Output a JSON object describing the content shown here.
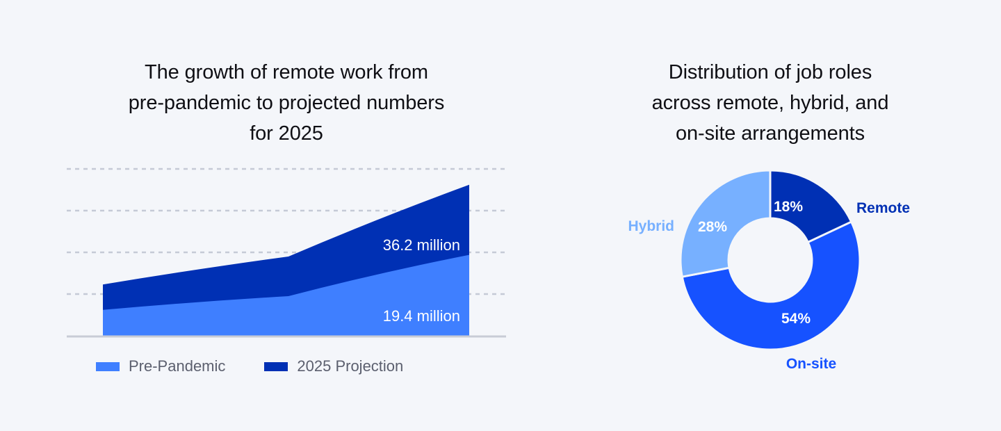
{
  "colors": {
    "background": "#f4f6fa",
    "pre_pandemic": "#3f7fff",
    "projection": "#0030b4",
    "remote": "#0030b4",
    "onsite": "#1652ff",
    "hybrid": "#77b0ff",
    "grid": "#c5cad6",
    "baseline": "#c8ccd6",
    "title": "#0f0f14",
    "legend_text": "#5b5f6e"
  },
  "area_chart": {
    "title": "The growth of remote work from\npre-pandemic to projected numbers\nfor 2025",
    "labels": {
      "projection_value": "36.2 million",
      "pre_pandemic_value": "19.4 million"
    },
    "legend": [
      {
        "label": "Pre-Pandemic",
        "color": "#3f7fff"
      },
      {
        "label": "2025 Projection",
        "color": "#0030b4"
      }
    ]
  },
  "donut_chart": {
    "title": "Distribution of job roles\nacross remote, hybrid, and\non-site arrangements",
    "segments": [
      {
        "label": "Remote",
        "percent_label": "18%",
        "value": 18,
        "color": "#0030b4"
      },
      {
        "label": "On-site",
        "percent_label": "54%",
        "value": 54,
        "color": "#1652ff"
      },
      {
        "label": "Hybrid",
        "percent_label": "28%",
        "value": 28,
        "color": "#77b0ff"
      }
    ]
  },
  "chart_data": [
    {
      "type": "area",
      "title": "The growth of remote work from pre-pandemic to projected numbers for 2025",
      "xlabel": "",
      "ylabel": "",
      "x": [
        0,
        1,
        2
      ],
      "series": [
        {
          "name": "Pre-Pandemic",
          "values": [
            6.2,
            9.5,
            19.4
          ]
        },
        {
          "name": "2025 Projection",
          "values": [
            12.3,
            19.0,
            36.2
          ]
        }
      ],
      "stacked": false,
      "annotations": [
        "36.2 million",
        "19.4 million"
      ],
      "grid": true,
      "legend_position": "bottom",
      "ylim": [
        0,
        40
      ]
    },
    {
      "type": "pie",
      "donut": true,
      "title": "Distribution of job roles across remote, hybrid, and on-site arrangements",
      "categories": [
        "Remote",
        "On-site",
        "Hybrid"
      ],
      "values": [
        18,
        54,
        28
      ],
      "units": "%"
    }
  ]
}
